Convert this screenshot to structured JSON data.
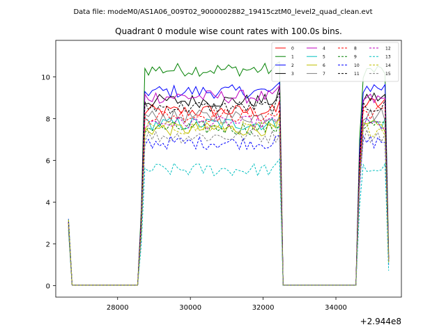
{
  "chart_data": {
    "type": "line",
    "suptitle": "Data file: modeM0/AS1A06_009T02_9000002882_19415cztM0_level2_quad_clean.evt",
    "title": "Quadrant 0 module wise count rates with 100.0s bins.",
    "xlabel": "",
    "ylabel": "",
    "x_offset_label": "+2.944e8",
    "xlim": [
      26300,
      35800
    ],
    "ylim": [
      -0.55,
      11.75
    ],
    "x_ticks": [
      28000,
      30000,
      32000,
      34000
    ],
    "x_tick_labels": [
      "28000",
      "30000",
      "32000",
      "34000"
    ],
    "y_ticks": [
      0,
      2,
      4,
      6,
      8,
      10
    ],
    "y_tick_labels": [
      "0",
      "2",
      "4",
      "6",
      "8",
      "10"
    ],
    "grid": false,
    "legend_position": "top-right",
    "legend_columns": 4,
    "bin_seconds": 100.0,
    "segments": [
      {
        "start": 26650,
        "end": 26750,
        "edge_values": [
          3.1,
          0.02
        ]
      },
      {
        "start": 26750,
        "end": 28550,
        "flat": 0.02
      },
      {
        "start": 28550,
        "end": 32550,
        "rise_from": 0.02,
        "fall_to": 0.02
      },
      {
        "start": 32550,
        "end": 34550,
        "flat": 0.02
      },
      {
        "start": 34550,
        "end": 35450,
        "rise_from": 0.1,
        "end_value_ratio": 0.12
      }
    ],
    "series": [
      {
        "name": "0",
        "color": "#ff0000",
        "dash": false,
        "level": 8.35,
        "level2": 8.7
      },
      {
        "name": "1",
        "color": "#008000",
        "dash": false,
        "level": 10.35,
        "level2": 10.3
      },
      {
        "name": "2",
        "color": "#0000ff",
        "dash": false,
        "level": 9.3,
        "level2": 9.5
      },
      {
        "name": "3",
        "color": "#000000",
        "dash": false,
        "level": 8.85,
        "level2": 9.0
      },
      {
        "name": "4",
        "color": "#bf00bf",
        "dash": false,
        "level": 9.05,
        "level2": 8.9
      },
      {
        "name": "5",
        "color": "#00bfbf",
        "dash": false,
        "level": 7.75,
        "level2": 7.8
      },
      {
        "name": "6",
        "color": "#bfbf00",
        "dash": false,
        "level": 7.5,
        "level2": 7.6
      },
      {
        "name": "7",
        "color": "#808080",
        "dash": false,
        "level": 8.1,
        "level2": 8.2
      },
      {
        "name": "8",
        "color": "#ff0000",
        "dash": true,
        "level": 8.15,
        "level2": 8.3
      },
      {
        "name": "9",
        "color": "#008000",
        "dash": true,
        "level": 7.55,
        "level2": 7.7
      },
      {
        "name": "10",
        "color": "#0000ff",
        "dash": true,
        "level": 6.85,
        "level2": 6.9
      },
      {
        "name": "11",
        "color": "#000000",
        "dash": true,
        "level": 8.55,
        "level2": 8.6
      },
      {
        "name": "12",
        "color": "#bf00bf",
        "dash": true,
        "level": 7.8,
        "level2": 7.7
      },
      {
        "name": "13",
        "color": "#00bfbf",
        "dash": true,
        "level": 5.55,
        "level2": 5.6
      },
      {
        "name": "14",
        "color": "#bfbf00",
        "dash": true,
        "level": 7.55,
        "level2": 7.5
      },
      {
        "name": "15",
        "color": "#808080",
        "dash": true,
        "level": 7.15,
        "level2": 7.2
      }
    ],
    "colors": {
      "axes": "#000000",
      "background": "#ffffff"
    }
  }
}
